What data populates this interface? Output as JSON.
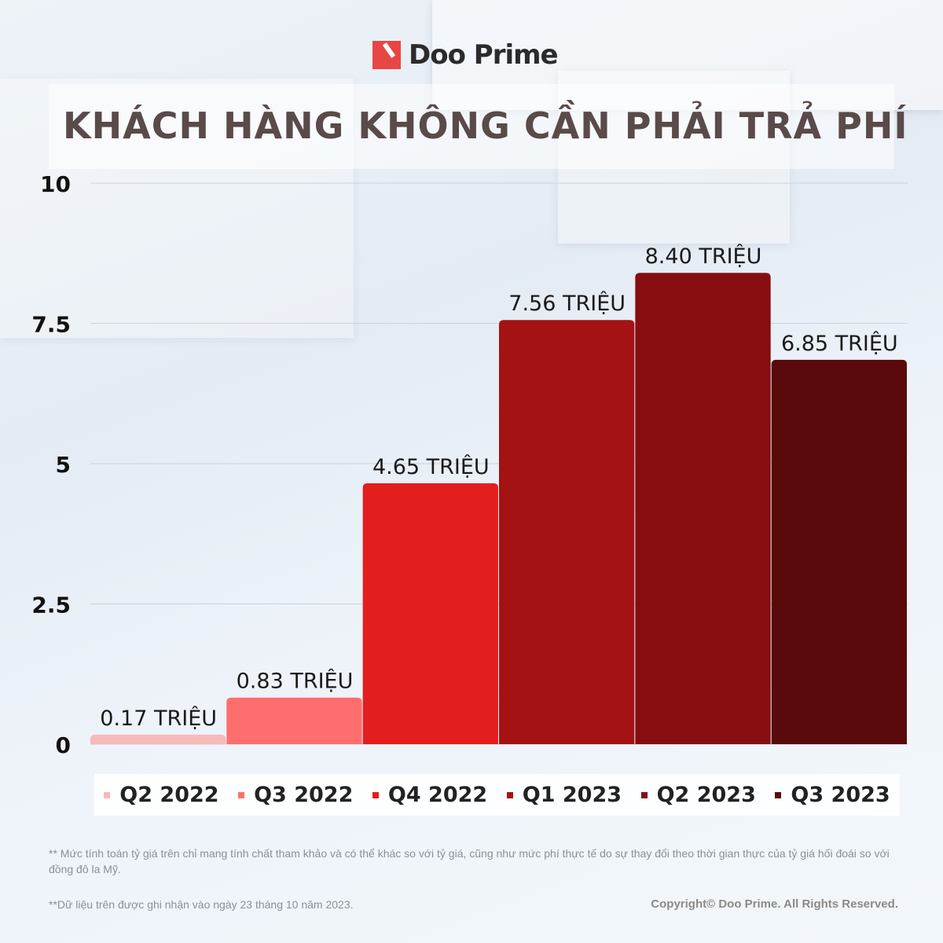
{
  "brand": {
    "name": "Doo Prime"
  },
  "chart_data": {
    "type": "bar",
    "title": "KHÁCH HÀNG KHÔNG CẦN PHẢI TRẢ PHÍ",
    "categories": [
      "Q2 2022",
      "Q3 2022",
      "Q4 2022",
      "Q1 2023",
      "Q2 2023",
      "Q3 2023"
    ],
    "values": [
      0.17,
      0.83,
      4.65,
      7.56,
      8.4,
      6.85
    ],
    "data_labels": [
      "0.17 TRIỆU",
      "0.83 TRIỆU",
      "4.65 TRIỆU",
      "7.56 TRIỆU",
      "8.40 TRIỆU",
      "6.85 TRIỆU"
    ],
    "colors": [
      "#f8b9b9",
      "#ff6e6e",
      "#e31e1e",
      "#a41214",
      "#860e10",
      "#5a0a0b"
    ],
    "yticks": [
      "0",
      "2.5",
      "5",
      "7.5",
      "10"
    ],
    "ytick_values": [
      0,
      2.5,
      5,
      7.5,
      10
    ],
    "ylim": [
      0,
      10
    ],
    "grid": true,
    "legend": "bottom"
  },
  "footnotes": {
    "disclaimer": "** Mức tính toán tỷ giá trên chỉ mang tính chất tham khảo và có thể khác so với tỷ giá, cũng như mức phí thực tế do sự thay đổi theo thời gian thực của tỷ giá hối đoái so với đồng đô la Mỹ.",
    "date": "**Dữ liệu trên được ghi nhận vào ngày 23 tháng 10 năm 2023.",
    "copyright": "Copyright© Doo Prime. All Rights Reserved."
  }
}
